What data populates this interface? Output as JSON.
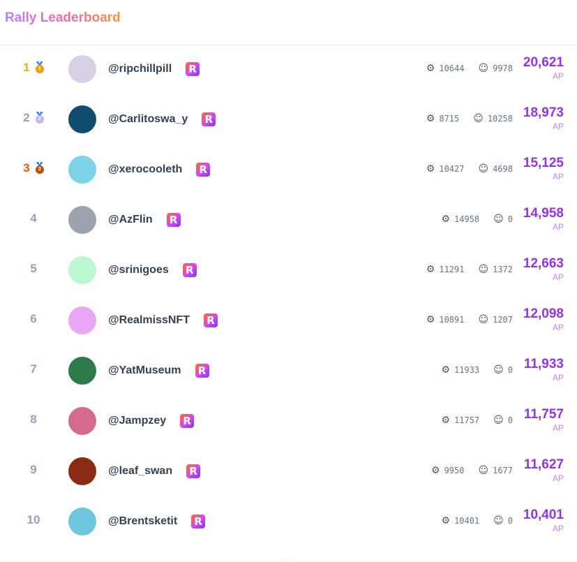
{
  "header": {
    "title": "Rally Leaderboard"
  },
  "colors": {
    "accent": "#9333ea",
    "gold": "#eab308",
    "bronze": "#ea580c",
    "muted": "#94a3b8"
  },
  "icons": {
    "stat1": "brain-icon",
    "stat2": "users-icon",
    "badge": "rally-r-icon"
  },
  "rows": [
    {
      "rank": "1",
      "medal": "1",
      "handle": "@ripchillpill",
      "stat1": "10644",
      "stat2": "9978",
      "points": "20,621",
      "unit": "AP",
      "avatar": "#d9d0e8"
    },
    {
      "rank": "2",
      "medal": "2",
      "handle": "@Carlitoswa_y",
      "stat1": "8715",
      "stat2": "10258",
      "points": "18,973",
      "unit": "AP",
      "avatar": "#0f4c6e"
    },
    {
      "rank": "3",
      "medal": "3",
      "handle": "@xerocooleth",
      "stat1": "10427",
      "stat2": "4698",
      "points": "15,125",
      "unit": "AP",
      "avatar": "#7dd3e8"
    },
    {
      "rank": "4",
      "handle": "@AzFlin",
      "stat1": "14958",
      "stat2": "0",
      "points": "14,958",
      "unit": "AP",
      "avatar": "#9ca3af"
    },
    {
      "rank": "5",
      "handle": "@srinigoes",
      "stat1": "11291",
      "stat2": "1372",
      "points": "12,663",
      "unit": "AP",
      "avatar": "#bbf7d0"
    },
    {
      "rank": "6",
      "handle": "@RealmissNFT",
      "stat1": "10891",
      "stat2": "1207",
      "points": "12,098",
      "unit": "AP",
      "avatar": "#e9a8f5"
    },
    {
      "rank": "7",
      "handle": "@YatMuseum",
      "stat1": "11933",
      "stat2": "0",
      "points": "11,933",
      "unit": "AP",
      "avatar": "#2f7a4a"
    },
    {
      "rank": "8",
      "handle": "@Jampzey",
      "stat1": "11757",
      "stat2": "0",
      "points": "11,757",
      "unit": "AP",
      "avatar": "#d46a8c"
    },
    {
      "rank": "9",
      "handle": "@leaf_swan",
      "stat1": "9950",
      "stat2": "1677",
      "points": "11,627",
      "unit": "AP",
      "avatar": "#8b2a12"
    },
    {
      "rank": "10",
      "handle": "@Brentsketit",
      "stat1": "10401",
      "stat2": "0",
      "points": "10,401",
      "unit": "AP",
      "avatar": "#6ec6dc"
    }
  ],
  "footer": {
    "more": "..."
  }
}
